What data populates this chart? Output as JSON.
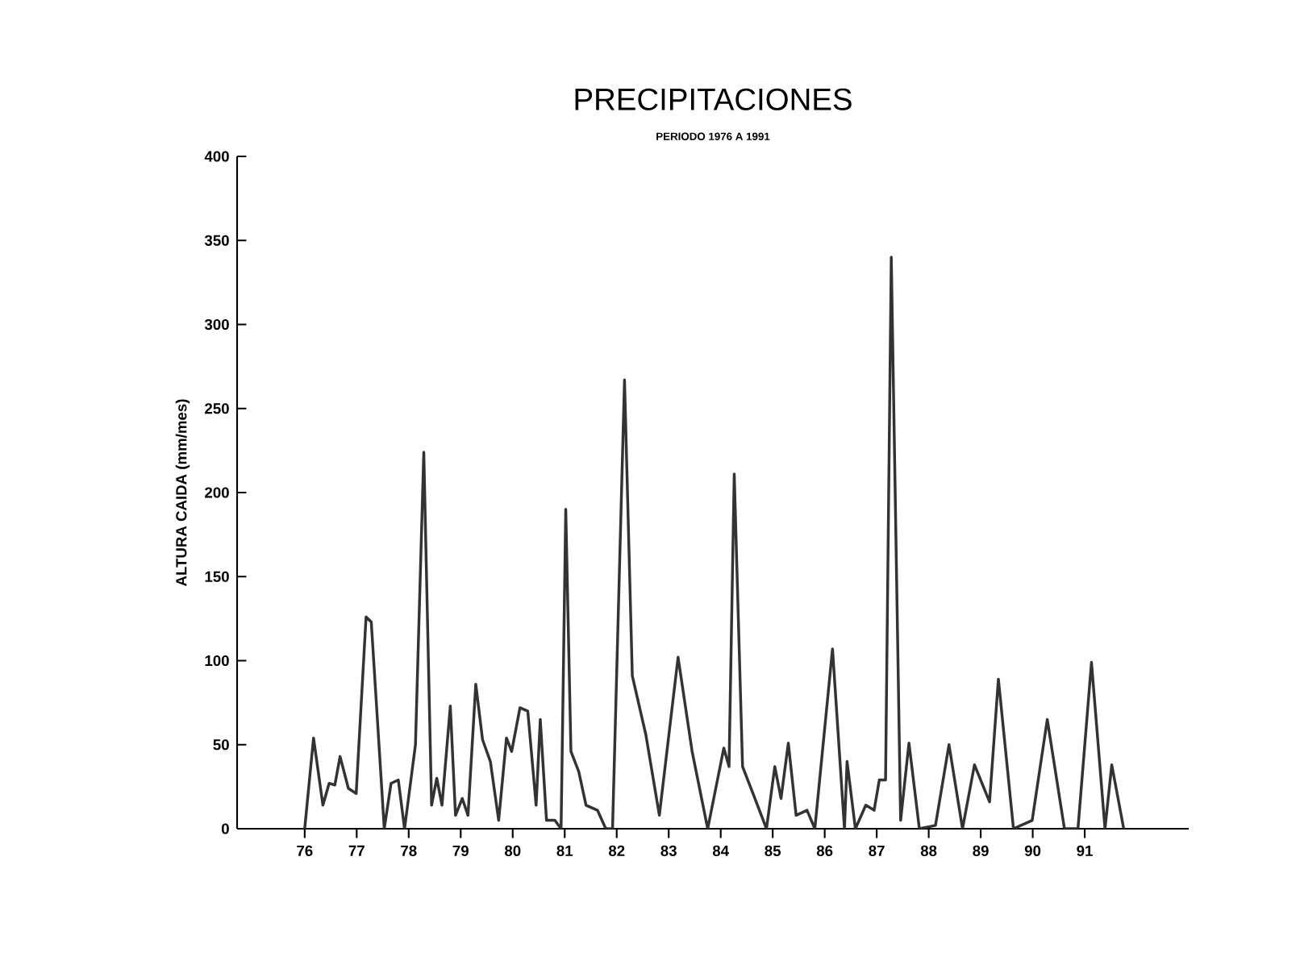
{
  "chart_data": {
    "type": "line",
    "title": "PRECIPITACIONES",
    "subtitle": "PERIODO 1976 A 1991",
    "ylabel": "ALTURA CAIDA (mm/mes)",
    "x": [
      76.0,
      76.17,
      76.35,
      76.47,
      76.58,
      76.68,
      76.84,
      76.99,
      77.18,
      77.28,
      77.53,
      77.66,
      77.8,
      77.92,
      78.13,
      78.29,
      78.44,
      78.54,
      78.64,
      78.8,
      78.9,
      79.03,
      79.14,
      79.29,
      79.42,
      79.57,
      79.73,
      79.88,
      79.98,
      80.14,
      80.29,
      80.45,
      80.53,
      80.65,
      80.81,
      80.93,
      81.02,
      81.12,
      81.27,
      81.41,
      81.63,
      81.79,
      81.92,
      82.15,
      82.3,
      82.56,
      82.82,
      83.18,
      83.45,
      83.75,
      84.06,
      84.16,
      84.26,
      84.42,
      84.62,
      84.88,
      85.04,
      85.16,
      85.3,
      85.45,
      85.66,
      85.81,
      86.15,
      86.38,
      86.43,
      86.59,
      86.79,
      86.95,
      87.05,
      87.17,
      87.28,
      87.46,
      87.62,
      87.82,
      88.13,
      88.39,
      88.65,
      88.88,
      89.17,
      89.34,
      89.63,
      89.99,
      90.28,
      90.61,
      90.87,
      91.13,
      91.39,
      91.52,
      91.75
    ],
    "values": [
      0,
      54,
      14,
      27,
      26,
      43,
      24,
      21,
      126,
      123,
      0,
      27,
      29,
      0,
      50,
      224,
      14,
      30,
      14,
      73,
      8,
      18,
      8,
      86,
      53,
      40,
      5,
      54,
      46,
      72,
      70,
      14,
      65,
      5,
      5,
      0,
      190,
      46,
      34,
      14,
      11,
      0,
      0,
      267,
      91,
      56,
      8,
      102,
      46,
      0,
      48,
      37,
      211,
      37,
      21,
      0,
      37,
      18,
      51,
      8,
      11,
      0,
      107,
      0,
      40,
      0,
      14,
      11,
      29,
      29,
      340,
      5,
      51,
      0,
      2,
      50,
      0,
      38,
      16,
      89,
      0,
      5,
      65,
      0,
      0,
      99,
      0,
      38,
      0
    ],
    "color": "#333333",
    "line_style": "solid",
    "marker": "none",
    "xlim": [
      74.7,
      93.0
    ],
    "ylim": [
      0,
      400
    ],
    "xticks": [
      76,
      77,
      78,
      79,
      80,
      81,
      82,
      83,
      84,
      85,
      86,
      87,
      88,
      89,
      90,
      91
    ],
    "yticks": [
      0,
      50,
      100,
      150,
      200,
      250,
      300,
      350,
      400
    ]
  }
}
